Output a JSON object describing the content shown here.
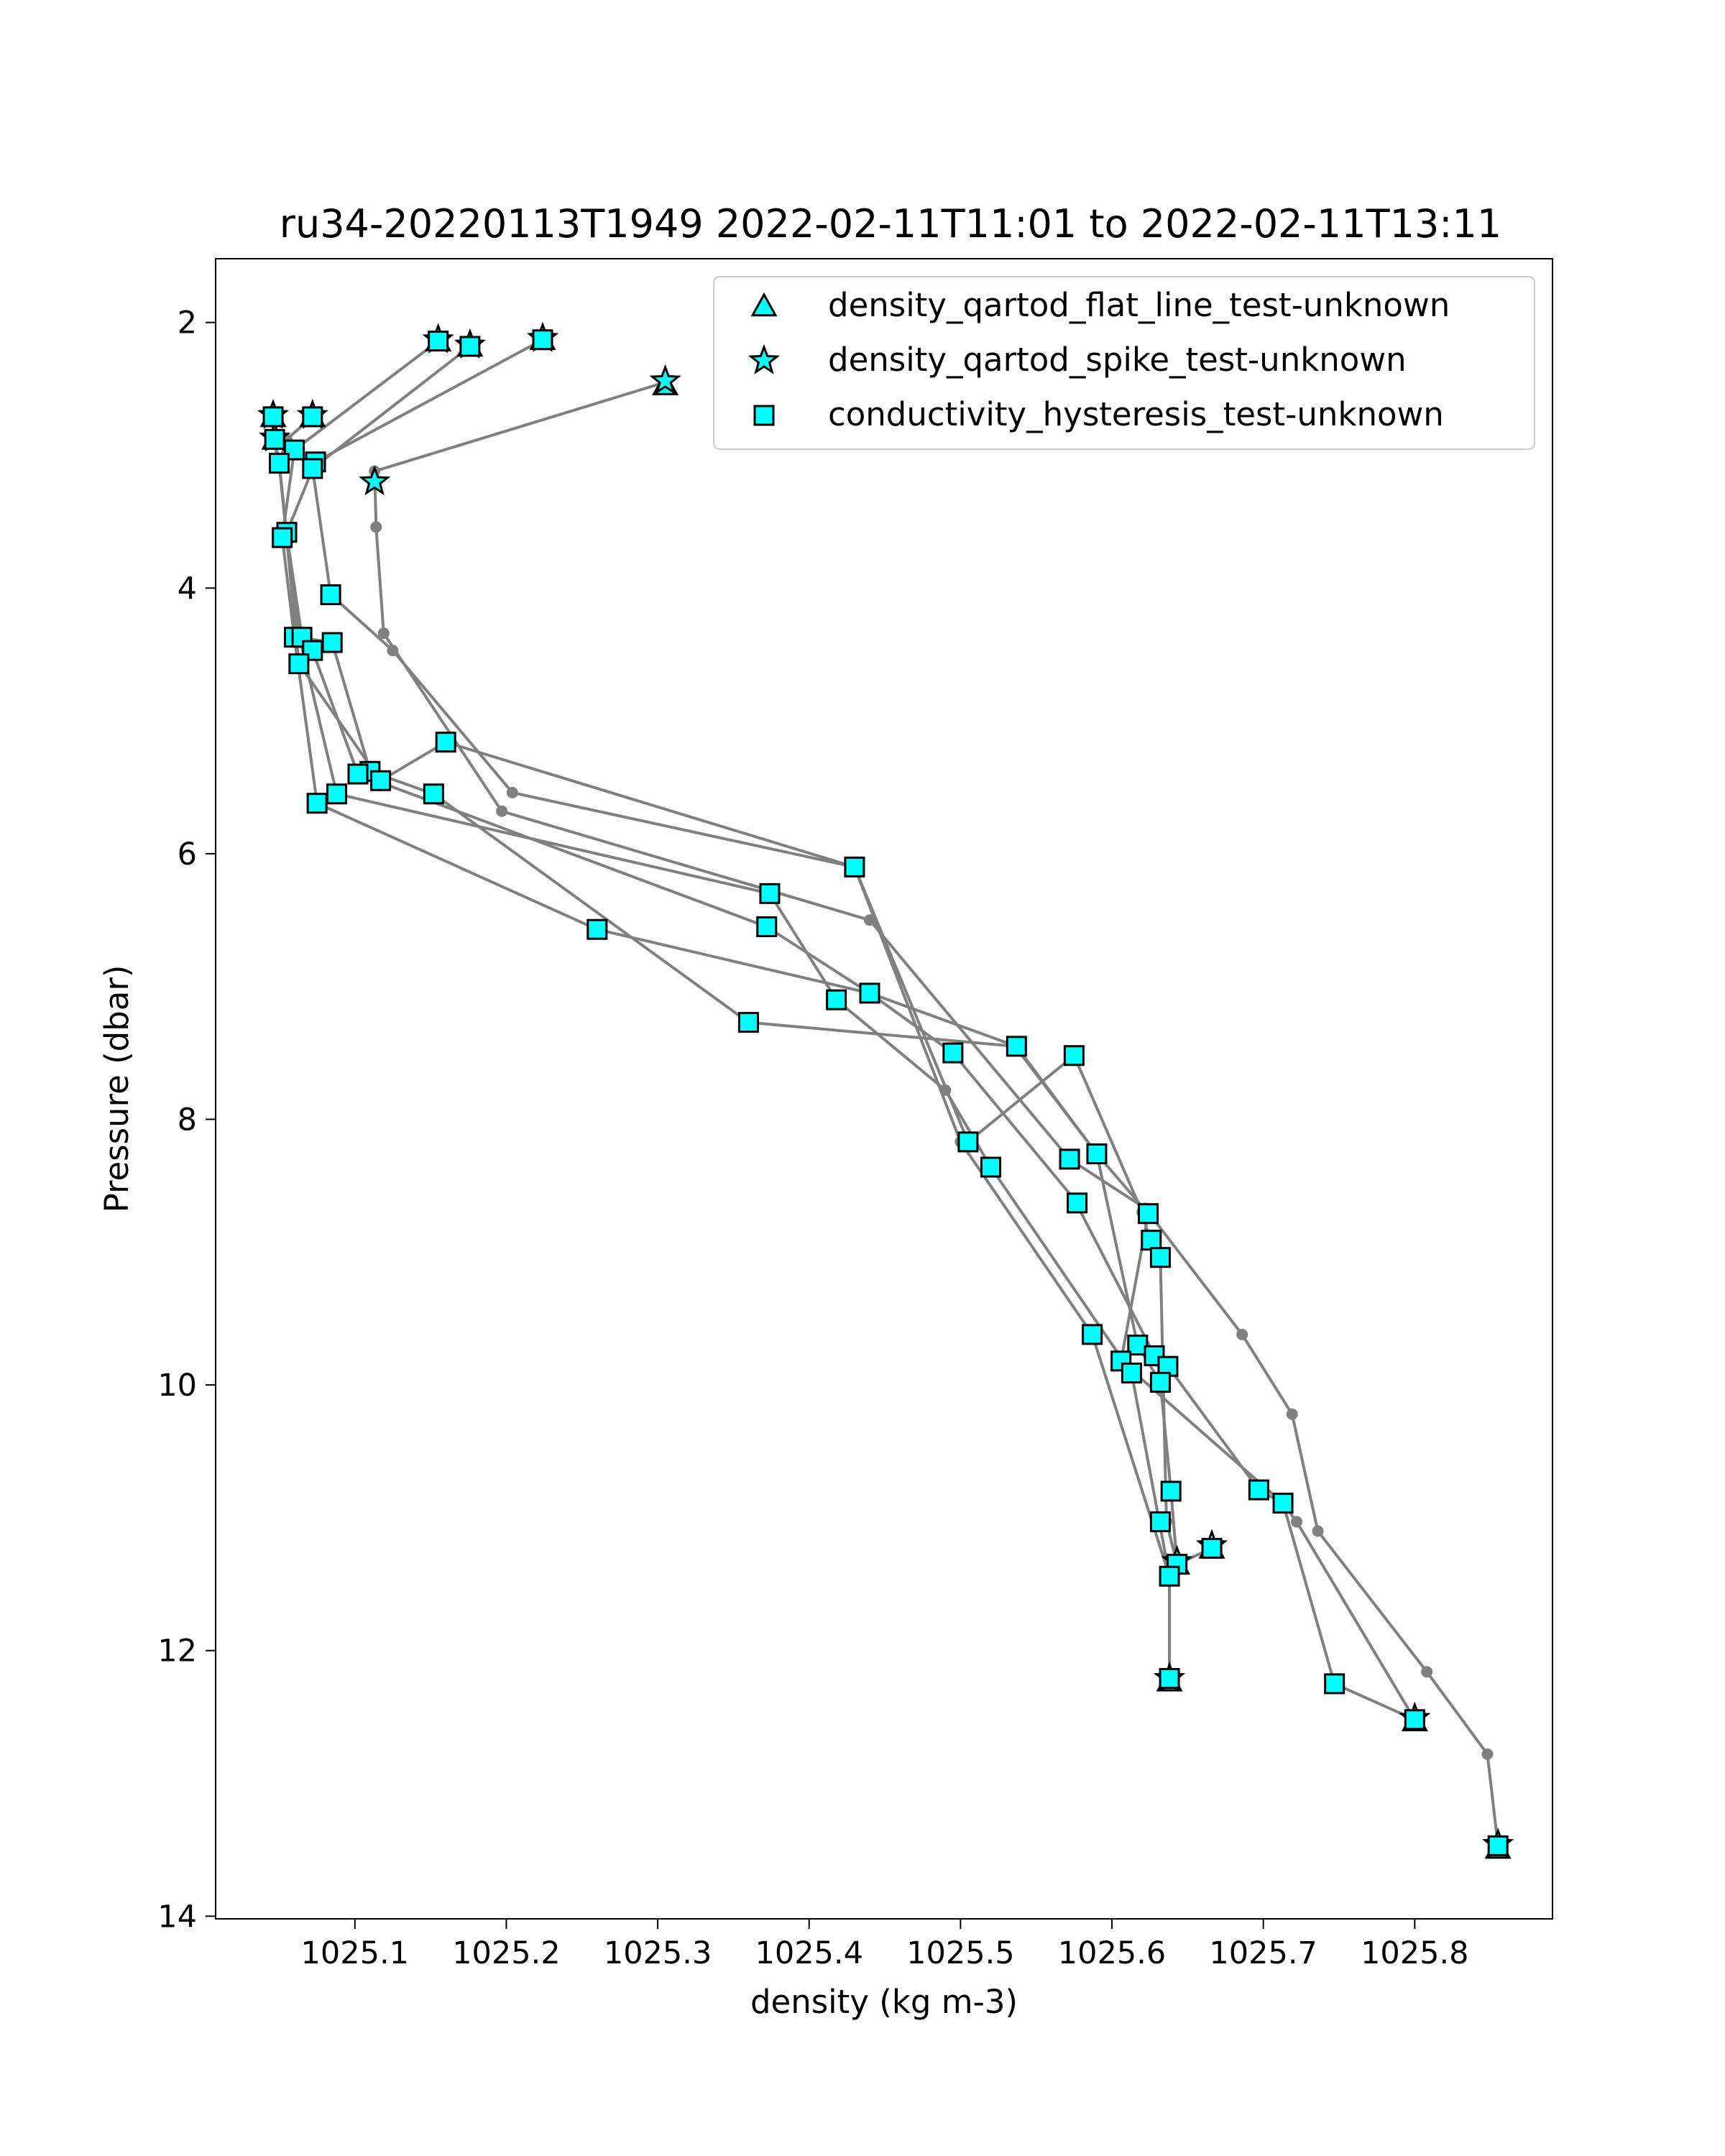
{
  "chart_data": {
    "type": "scatter",
    "title": "ru34-20220113T1949 2022-02-11T11:01 to 2022-02-11T13:11",
    "xlabel": "density (kg m-3)",
    "ylabel": "Pressure (dbar)",
    "xlim": [
      1025.008,
      1025.891
    ],
    "ylim": [
      14.02,
      1.52
    ],
    "y_inverted": true,
    "x_ticks": [
      "1025.1",
      "1025.2",
      "1025.3",
      "1025.4",
      "1025.5",
      "1025.6",
      "1025.7",
      "1025.8"
    ],
    "x_tick_values": [
      1025.1,
      1025.2,
      1025.3,
      1025.4,
      1025.5,
      1025.6,
      1025.7,
      1025.8
    ],
    "y_ticks": [
      "2",
      "4",
      "6",
      "8",
      "10",
      "12",
      "14"
    ],
    "y_tick_values": [
      2,
      4,
      6,
      8,
      10,
      12,
      14
    ],
    "grid": false,
    "legend_position": "top-right",
    "colors": {
      "line": "#808080",
      "marker_fill": "#00ffff",
      "marker_edge": "#000000"
    },
    "profiles": [
      [
        [
          1025.224,
          2.13
        ],
        [
          1025.074,
          3.05
        ],
        [
          1025.055,
          3.58
        ],
        [
          1025.063,
          4.35
        ],
        [
          1025.088,
          5.55
        ],
        [
          1025.374,
          6.3
        ],
        [
          1025.418,
          7.1
        ],
        [
          1025.49,
          7.78
        ],
        [
          1025.52,
          8.36
        ],
        [
          1025.613,
          9.91
        ],
        [
          1025.638,
          11.44
        ],
        [
          1025.638,
          12.21
        ]
      ],
      [
        [
          1025.155,
          2.14
        ],
        [
          1025.06,
          2.96
        ],
        [
          1025.052,
          3.62
        ],
        [
          1025.06,
          4.37
        ],
        [
          1025.075,
          5.62
        ],
        [
          1025.26,
          6.57
        ],
        [
          1025.44,
          7.05
        ],
        [
          1025.537,
          7.45
        ],
        [
          1025.59,
          8.26
        ],
        [
          1025.617,
          9.7
        ],
        [
          1025.632,
          9.98
        ],
        [
          1025.639,
          10.8
        ],
        [
          1025.643,
          11.35
        ],
        [
          1025.666,
          11.23
        ]
      ],
      [
        [
          1025.176,
          2.18
        ],
        [
          1025.072,
          3.1
        ],
        [
          1025.084,
          4.05
        ],
        [
          1025.125,
          4.47
        ],
        [
          1025.204,
          5.54
        ],
        [
          1025.43,
          6.1
        ],
        [
          1025.5,
          8.17
        ],
        [
          1025.587,
          9.62
        ],
        [
          1025.638,
          11.44
        ],
        [
          1025.638,
          12.21
        ]
      ],
      [
        [
          1025.305,
          2.45
        ],
        [
          1025.113,
          3.12
        ],
        [
          1025.114,
          3.54
        ],
        [
          1025.119,
          4.34
        ],
        [
          1025.197,
          5.68
        ],
        [
          1025.44,
          6.5
        ],
        [
          1025.572,
          8.3
        ],
        [
          1025.622,
          8.67
        ],
        [
          1025.686,
          9.62
        ],
        [
          1025.719,
          10.22
        ],
        [
          1025.736,
          11.1
        ],
        [
          1025.808,
          12.16
        ],
        [
          1025.848,
          12.78
        ],
        [
          1025.855,
          13.47
        ]
      ],
      [
        [
          1025.046,
          2.71
        ],
        [
          1025.046,
          2.88
        ],
        [
          1025.05,
          3.06
        ],
        [
          1025.055,
          3.6
        ],
        [
          1025.065,
          4.37
        ],
        [
          1025.072,
          4.47
        ],
        [
          1025.102,
          5.4
        ],
        [
          1025.372,
          6.55
        ],
        [
          1025.44,
          7.05
        ],
        [
          1025.495,
          7.5
        ],
        [
          1025.575,
          8.6
        ],
        [
          1025.63,
          9.82
        ],
        [
          1025.637,
          9.86
        ],
        [
          1025.697,
          10.79
        ],
        [
          1025.713,
          10.89
        ],
        [
          1025.722,
          11.03
        ],
        [
          1025.8,
          12.52
        ]
      ],
      [
        [
          1025.072,
          2.71
        ],
        [
          1025.055,
          2.88
        ],
        [
          1025.05,
          3.06
        ],
        [
          1025.055,
          3.62
        ],
        [
          1025.063,
          4.37
        ],
        [
          1025.085,
          4.41
        ],
        [
          1025.11,
          5.38
        ],
        [
          1025.152,
          5.55
        ],
        [
          1025.36,
          7.27
        ],
        [
          1025.536,
          7.45
        ],
        [
          1025.59,
          8.26
        ],
        [
          1025.624,
          8.71
        ],
        [
          1025.606,
          9.82
        ],
        [
          1025.713,
          10.89
        ],
        [
          1025.747,
          12.25
        ],
        [
          1025.8,
          12.52
        ]
      ],
      [
        [
          1025.047,
          2.71
        ],
        [
          1025.047,
          2.88
        ],
        [
          1025.05,
          3.06
        ],
        [
          1025.063,
          4.57
        ],
        [
          1025.117,
          5.45
        ],
        [
          1025.16,
          5.16
        ],
        [
          1025.43,
          6.1
        ],
        [
          1025.505,
          8.17
        ],
        [
          1025.575,
          7.52
        ],
        [
          1025.62,
          8.7
        ],
        [
          1025.625,
          8.91
        ],
        [
          1025.632,
          9.04
        ],
        [
          1025.636,
          11.03
        ],
        [
          1025.643,
          11.35
        ],
        [
          1025.666,
          11.23
        ]
      ]
    ],
    "series": [
      {
        "name": "density_qartod_flat_line_test-unknown",
        "marker": "triangle",
        "points": [
          [
            1025.155,
            2.14
          ],
          [
            1025.176,
            2.18
          ],
          [
            1025.224,
            2.13
          ],
          [
            1025.305,
            2.47
          ],
          [
            1025.046,
            2.71
          ],
          [
            1025.072,
            2.71
          ],
          [
            1025.047,
            2.88
          ],
          [
            1025.666,
            11.23
          ],
          [
            1025.643,
            11.35
          ],
          [
            1025.638,
            12.23
          ],
          [
            1025.8,
            12.53
          ],
          [
            1025.855,
            13.49
          ]
        ]
      },
      {
        "name": "density_qartod_spike_test-unknown",
        "marker": "star",
        "points": [
          [
            1025.155,
            2.13
          ],
          [
            1025.176,
            2.17
          ],
          [
            1025.224,
            2.12
          ],
          [
            1025.305,
            2.44
          ],
          [
            1025.046,
            2.7
          ],
          [
            1025.072,
            2.7
          ],
          [
            1025.047,
            2.87
          ],
          [
            1025.113,
            3.2
          ],
          [
            1025.666,
            11.21
          ],
          [
            1025.643,
            11.33
          ],
          [
            1025.638,
            12.21
          ],
          [
            1025.8,
            12.51
          ],
          [
            1025.855,
            13.46
          ]
        ]
      },
      {
        "name": "conductivity_hysteresis_test-unknown",
        "marker": "square",
        "points": [
          [
            1025.155,
            2.14
          ],
          [
            1025.176,
            2.18
          ],
          [
            1025.224,
            2.13
          ],
          [
            1025.046,
            2.71
          ],
          [
            1025.072,
            2.71
          ],
          [
            1025.047,
            2.88
          ],
          [
            1025.06,
            2.96
          ],
          [
            1025.074,
            3.05
          ],
          [
            1025.05,
            3.06
          ],
          [
            1025.072,
            3.1
          ],
          [
            1025.055,
            3.58
          ],
          [
            1025.052,
            3.62
          ],
          [
            1025.084,
            4.05
          ],
          [
            1025.06,
            4.37
          ],
          [
            1025.065,
            4.37
          ],
          [
            1025.085,
            4.41
          ],
          [
            1025.072,
            4.47
          ],
          [
            1025.063,
            4.57
          ],
          [
            1025.16,
            5.16
          ],
          [
            1025.11,
            5.38
          ],
          [
            1025.102,
            5.4
          ],
          [
            1025.117,
            5.45
          ],
          [
            1025.088,
            5.55
          ],
          [
            1025.152,
            5.55
          ],
          [
            1025.075,
            5.62
          ],
          [
            1025.43,
            6.1
          ],
          [
            1025.374,
            6.3
          ],
          [
            1025.372,
            6.55
          ],
          [
            1025.26,
            6.57
          ],
          [
            1025.44,
            7.05
          ],
          [
            1025.418,
            7.1
          ],
          [
            1025.36,
            7.27
          ],
          [
            1025.537,
            7.45
          ],
          [
            1025.495,
            7.5
          ],
          [
            1025.575,
            7.52
          ],
          [
            1025.505,
            8.17
          ],
          [
            1025.59,
            8.26
          ],
          [
            1025.572,
            8.3
          ],
          [
            1025.52,
            8.36
          ],
          [
            1025.577,
            8.63
          ],
          [
            1025.624,
            8.71
          ],
          [
            1025.626,
            8.91
          ],
          [
            1025.632,
            9.04
          ],
          [
            1025.587,
            9.62
          ],
          [
            1025.617,
            9.7
          ],
          [
            1025.628,
            9.78
          ],
          [
            1025.606,
            9.82
          ],
          [
            1025.637,
            9.86
          ],
          [
            1025.613,
            9.91
          ],
          [
            1025.632,
            9.98
          ],
          [
            1025.697,
            10.79
          ],
          [
            1025.639,
            10.8
          ],
          [
            1025.713,
            10.89
          ],
          [
            1025.632,
            11.03
          ],
          [
            1025.666,
            11.23
          ],
          [
            1025.643,
            11.35
          ],
          [
            1025.638,
            11.44
          ],
          [
            1025.638,
            12.21
          ],
          [
            1025.747,
            12.25
          ],
          [
            1025.8,
            12.52
          ],
          [
            1025.855,
            13.47
          ]
        ]
      }
    ]
  }
}
